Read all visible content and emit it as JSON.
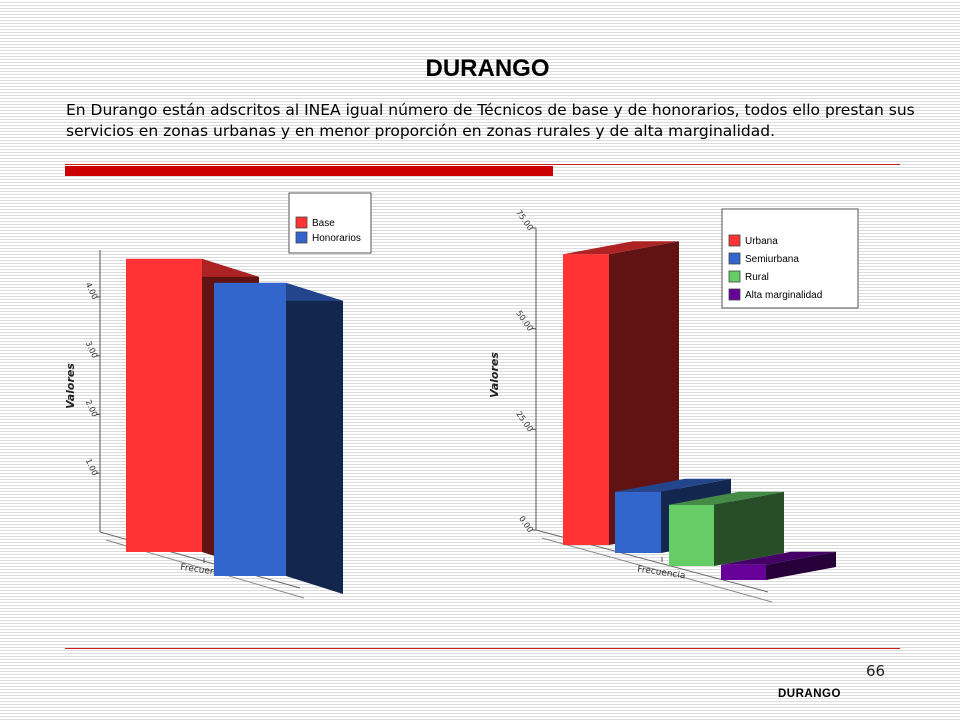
{
  "page": {
    "title": "DURANGO",
    "description": "En Durango están adscritos al INEA igual número de Técnicos de base y de honorarios, todos ello prestan sus servicios en zonas urbanas y en menor proporción en zonas rurales y de alta marginalidad.",
    "page_number": "66",
    "footer": "DURANGO"
  },
  "chart_data": [
    {
      "type": "bar",
      "categories": [
        "Frecuencia"
      ],
      "series": [
        {
          "name": "Base",
          "values": [
            4.2
          ],
          "color": "#ff3333"
        },
        {
          "name": "Honorarios",
          "values": [
            4.2
          ],
          "color": "#3366cc"
        }
      ],
      "ylabel": "Valores",
      "ylim": [
        0,
        4.8
      ],
      "yticks": [
        "1.00",
        "2.00",
        "3.00",
        "4.00"
      ],
      "legend": "top-right"
    },
    {
      "type": "bar",
      "categories": [
        "Frecuencia"
      ],
      "series": [
        {
          "name": "Urbana",
          "values": [
            76
          ],
          "color": "#ff3333"
        },
        {
          "name": "Semiurbana",
          "values": [
            16
          ],
          "color": "#3366cc"
        },
        {
          "name": "Rural",
          "values": [
            16
          ],
          "color": "#66cc66"
        },
        {
          "name": "Alta marginalidad",
          "values": [
            4
          ],
          "color": "#660099"
        }
      ],
      "ylabel": "Valores",
      "ylim": [
        0,
        75
      ],
      "yticks": [
        "0.00",
        "25.00",
        "50.00",
        "75.00"
      ],
      "legend": "top-right"
    }
  ]
}
